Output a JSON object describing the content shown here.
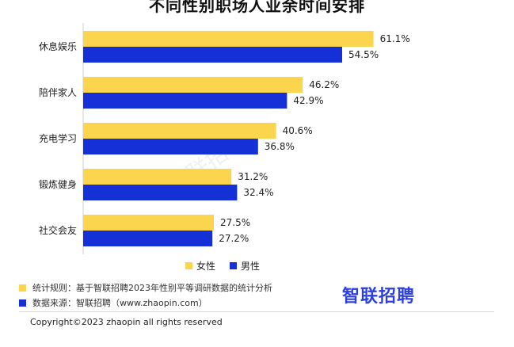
{
  "title": "不同性别职场人业余时间安排",
  "watermark": "智联招聘",
  "chart_data": {
    "type": "bar",
    "orientation": "horizontal",
    "categories": [
      "休息娱乐",
      "陪伴家人",
      "充电学习",
      "锻炼健身",
      "社交会友"
    ],
    "series": [
      {
        "name": "女性",
        "color": "#fcd54f",
        "values": [
          61.1,
          46.2,
          40.6,
          31.2,
          27.5
        ]
      },
      {
        "name": "男性",
        "color": "#1430d6",
        "values": [
          54.5,
          42.9,
          36.8,
          32.4,
          27.2
        ]
      }
    ],
    "value_suffix": "%",
    "xlim": [
      0,
      80
    ],
    "grid": false,
    "legend_position": "bottom"
  },
  "footnotes": [
    {
      "text": "统计规则：基于智联招聘2023年性别平等调研数据的统计分析",
      "color": "#fcd54f"
    },
    {
      "text": "数据来源：智联招聘（www.zhaopin.com）",
      "color": "#1430d6"
    }
  ],
  "logo_text": "智联招聘",
  "copyright": "Copyright©2023 zhaopin all rights reserved"
}
